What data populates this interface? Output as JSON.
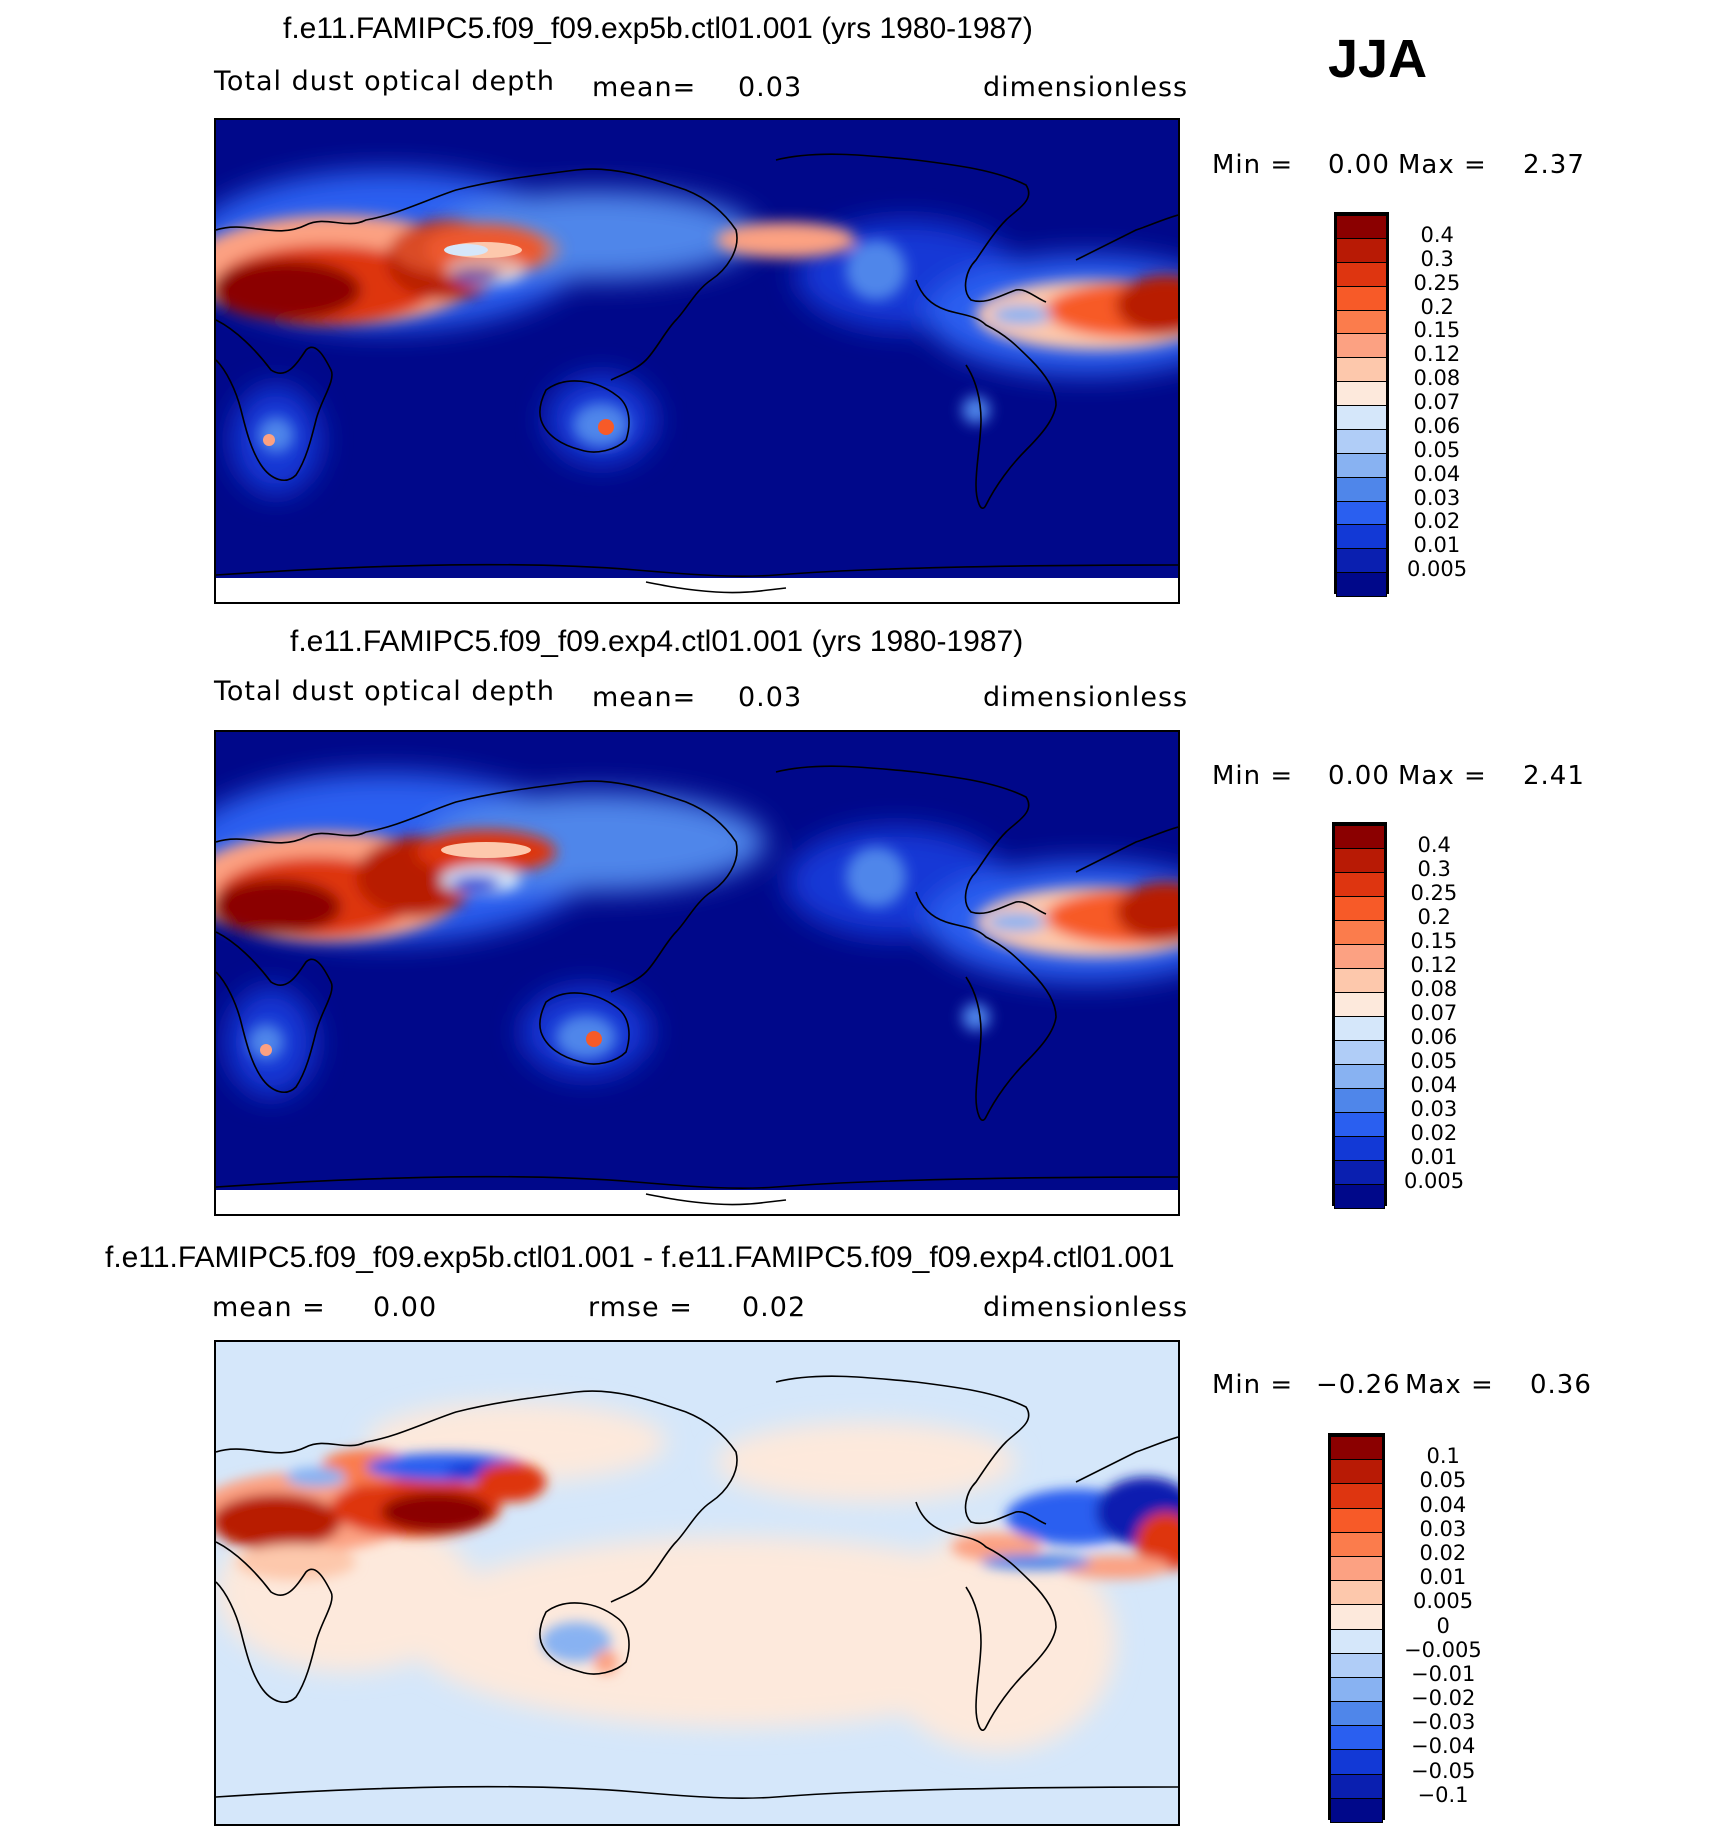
{
  "season": "JJA",
  "panels": [
    {
      "title": "f.e11.FAMIPC5.f09_f09.exp5b.ctl01.001 (yrs 1980-1987)",
      "variable": "Total dust optical depth",
      "stat_label": "mean=",
      "stat_value": "0.03",
      "units": "dimensionless",
      "min_label": "Min =",
      "min_value": "0.00",
      "max_label": "Max =",
      "max_value": "2.37"
    },
    {
      "title": "f.e11.FAMIPC5.f09_f09.exp4.ctl01.001 (yrs 1980-1987)",
      "variable": "Total dust optical depth",
      "stat_label": "mean=",
      "stat_value": "0.03",
      "units": "dimensionless",
      "min_label": "Min =",
      "min_value": "0.00",
      "max_label": "Max =",
      "max_value": "2.41"
    },
    {
      "title": "f.e11.FAMIPC5.f09_f09.exp5b.ctl01.001 - f.e11.FAMIPC5.f09_f09.exp4.ctl01.001",
      "mean_label": "mean =",
      "mean_value": "0.00",
      "rmse_label": "rmse =",
      "rmse_value": "0.02",
      "units": "dimensionless",
      "min_label": "Min =",
      "min_value": "−0.26",
      "max_label": "Max =",
      "max_value": "0.36"
    }
  ],
  "colorbars": {
    "abs": {
      "labels": [
        "0.4",
        "0.3",
        "0.25",
        "0.2",
        "0.15",
        "0.12",
        "0.08",
        "0.07",
        "0.06",
        "0.05",
        "0.04",
        "0.03",
        "0.02",
        "0.01",
        "0.005"
      ],
      "colors": [
        "#8b0000",
        "#b81a05",
        "#de3510",
        "#f75a28",
        "#fb7c4c",
        "#fca182",
        "#fdc8ac",
        "#fde9dc",
        "#d5e7fa",
        "#b0cdf7",
        "#88b2f2",
        "#4f86ea",
        "#2a5ff0",
        "#1239d6",
        "#0a1fb0",
        "#00088a"
      ]
    },
    "diff": {
      "labels": [
        "0.1",
        "0.05",
        "0.04",
        "0.03",
        "0.02",
        "0.01",
        "0.005",
        "0",
        "−0.005",
        "−0.01",
        "−0.02",
        "−0.03",
        "−0.04",
        "−0.05",
        "−0.1"
      ],
      "colors": [
        "#8b0000",
        "#b81a05",
        "#de3510",
        "#f75a28",
        "#fb7c4c",
        "#fca182",
        "#fdc8ac",
        "#fde9dc",
        "#d5e7fa",
        "#b0cdf7",
        "#88b2f2",
        "#4f86ea",
        "#2a5ff0",
        "#1239d6",
        "#0a1fb0",
        "#00088a"
      ]
    }
  },
  "chart_data": [
    {
      "type": "heatmap",
      "title": "f.e11.FAMIPC5.f09_f09.exp5b.ctl01.001 (yrs 1980-1987)",
      "variable": "Total dust optical depth",
      "mean": 0.03,
      "min": 0.0,
      "max": 2.37,
      "levels": [
        0.005,
        0.01,
        0.02,
        0.03,
        0.04,
        0.05,
        0.06,
        0.07,
        0.08,
        0.12,
        0.15,
        0.2,
        0.25,
        0.3,
        0.4
      ]
    },
    {
      "type": "heatmap",
      "title": "f.e11.FAMIPC5.f09_f09.exp4.ctl01.001 (yrs 1980-1987)",
      "variable": "Total dust optical depth",
      "mean": 0.03,
      "min": 0.0,
      "max": 2.41,
      "levels": [
        0.005,
        0.01,
        0.02,
        0.03,
        0.04,
        0.05,
        0.06,
        0.07,
        0.08,
        0.12,
        0.15,
        0.2,
        0.25,
        0.3,
        0.4
      ]
    },
    {
      "type": "heatmap",
      "title": "f.e11.FAMIPC5.f09_f09.exp5b.ctl01.001 - f.e11.FAMIPC5.f09_f09.exp4.ctl01.001",
      "mean": 0.0,
      "rmse": 0.02,
      "min": -0.26,
      "max": 0.36,
      "levels": [
        -0.1,
        -0.05,
        -0.04,
        -0.03,
        -0.02,
        -0.01,
        -0.005,
        0,
        0.005,
        0.01,
        0.02,
        0.03,
        0.04,
        0.05,
        0.1
      ]
    }
  ]
}
